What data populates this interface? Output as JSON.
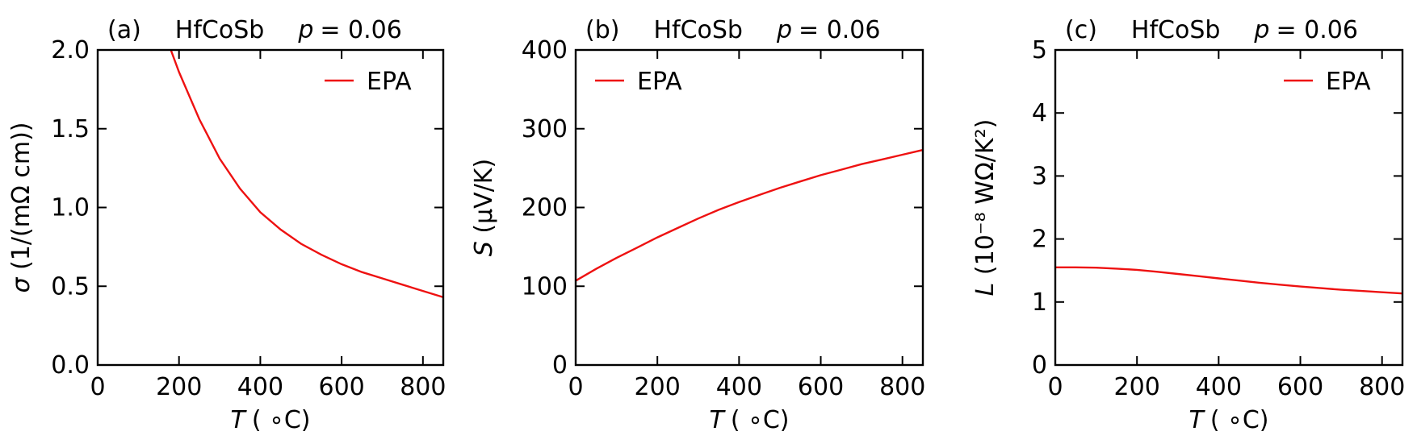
{
  "colors": {
    "series": "#ee1111",
    "axes": "#000000",
    "background": "#ffffff"
  },
  "chart_data": [
    {
      "type": "line",
      "panel_label": "(a)",
      "material": "HfCoSb",
      "param_symbol": "p",
      "param_value": "= 0.06",
      "xlabel_var": "T",
      "xlabel_unit": "( ∘C)",
      "ylabel_var": "σ",
      "ylabel_unit": " (1/(mΩ cm))",
      "xlim": [
        0,
        850
      ],
      "ylim": [
        0,
        2.0
      ],
      "xticks": [
        0,
        200,
        400,
        600,
        800
      ],
      "xtick_labels": [
        "0",
        "200",
        "400",
        "600",
        "800"
      ],
      "yticks": [
        0,
        0.5,
        1.0,
        1.5,
        2.0
      ],
      "ytick_labels": [
        "0.0",
        "0.5",
        "1.0",
        "1.5",
        "2.0"
      ],
      "legend_position": "top-right",
      "grid": false,
      "series": [
        {
          "name": "EPA",
          "x": [
            180,
            200,
            250,
            300,
            350,
            400,
            450,
            500,
            550,
            600,
            650,
            700,
            750,
            800,
            850
          ],
          "y": [
            2.0,
            1.86,
            1.56,
            1.31,
            1.12,
            0.97,
            0.86,
            0.77,
            0.7,
            0.64,
            0.59,
            0.55,
            0.51,
            0.47,
            0.43
          ]
        }
      ]
    },
    {
      "type": "line",
      "panel_label": "(b)",
      "material": "HfCoSb",
      "param_symbol": "p",
      "param_value": "= 0.06",
      "xlabel_var": "T",
      "xlabel_unit": "( ∘C)",
      "ylabel_var": "S",
      "ylabel_unit": " (μV/K)",
      "xlim": [
        0,
        850
      ],
      "ylim": [
        0,
        400
      ],
      "xticks": [
        0,
        200,
        400,
        600,
        800
      ],
      "xtick_labels": [
        "0",
        "200",
        "400",
        "600",
        "800"
      ],
      "yticks": [
        0,
        100,
        200,
        300,
        400
      ],
      "ytick_labels": [
        "0",
        "100",
        "200",
        "300",
        "400"
      ],
      "legend_position": "top-left",
      "grid": false,
      "series": [
        {
          "name": "EPA",
          "x": [
            0,
            50,
            100,
            150,
            200,
            250,
            300,
            350,
            400,
            450,
            500,
            550,
            600,
            650,
            700,
            750,
            800,
            850
          ],
          "y": [
            107,
            122,
            136,
            149,
            162,
            174,
            186,
            197,
            207,
            216,
            225,
            233,
            241,
            248,
            255,
            261,
            267,
            273
          ]
        }
      ]
    },
    {
      "type": "line",
      "panel_label": "(c)",
      "material": "HfCoSb",
      "param_symbol": "p",
      "param_value": "= 0.06",
      "xlabel_var": "T",
      "xlabel_unit": "( ∘C)",
      "ylabel_var": "L",
      "ylabel_unit": " (10⁻⁸ WΩ/K²)",
      "xlim": [
        0,
        850
      ],
      "ylim": [
        0,
        5
      ],
      "xticks": [
        0,
        200,
        400,
        600,
        800
      ],
      "xtick_labels": [
        "0",
        "200",
        "400",
        "600",
        "800"
      ],
      "yticks": [
        0,
        1,
        2,
        3,
        4,
        5
      ],
      "ytick_labels": [
        "0",
        "1",
        "2",
        "3",
        "4",
        "5"
      ],
      "legend_position": "top-right",
      "grid": false,
      "series": [
        {
          "name": "EPA",
          "x": [
            0,
            50,
            100,
            150,
            200,
            250,
            300,
            350,
            400,
            450,
            500,
            550,
            600,
            650,
            700,
            750,
            800,
            850
          ],
          "y": [
            1.55,
            1.55,
            1.545,
            1.53,
            1.51,
            1.48,
            1.445,
            1.41,
            1.375,
            1.34,
            1.305,
            1.275,
            1.245,
            1.22,
            1.195,
            1.175,
            1.155,
            1.135
          ]
        }
      ]
    }
  ]
}
